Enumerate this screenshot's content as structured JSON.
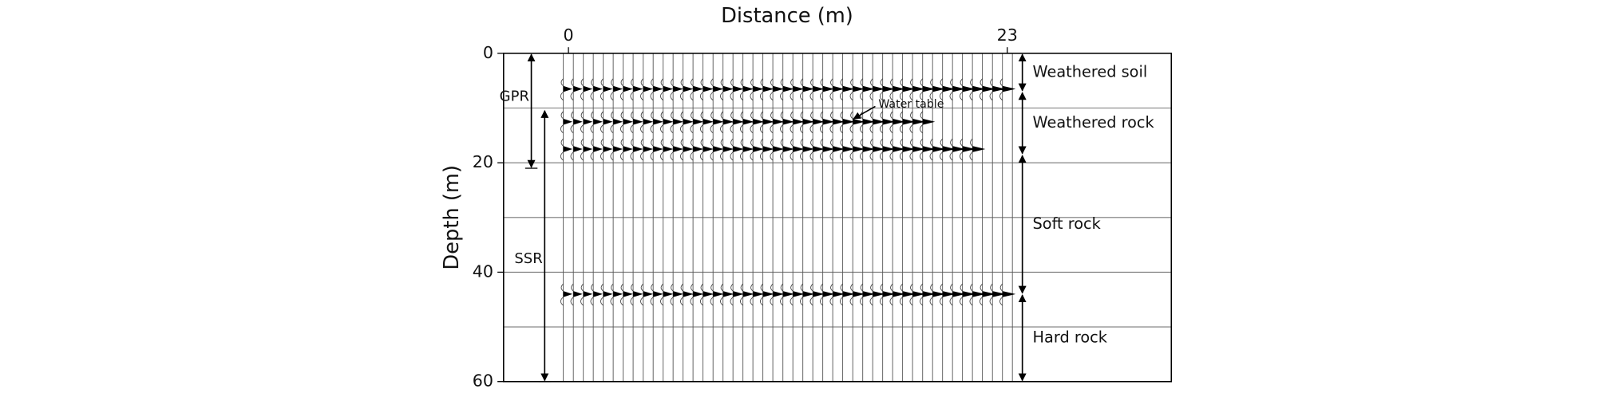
{
  "chart_data": {
    "type": "seismic-section",
    "x_label": "Distance (m)",
    "y_label": "Depth (m)",
    "xlim": [
      -3.4,
      31.6
    ],
    "ylim": [
      0,
      60
    ],
    "xticks": [
      0,
      23
    ],
    "yticks": [
      0,
      20,
      40,
      60
    ],
    "ygrid": [
      10,
      20,
      30,
      40,
      50
    ],
    "reflectors": [
      {
        "depth": 6.5,
        "end": 23
      },
      {
        "depth": 12.5,
        "end": 19
      },
      {
        "depth": 17.5,
        "end": 21.5
      },
      {
        "depth": 44,
        "end": 23
      }
    ],
    "layers": [
      {
        "name": "Weathered soil",
        "top": 0,
        "bottom": 7
      },
      {
        "name": "Weathered rock",
        "top": 7,
        "bottom": 18.5
      },
      {
        "name": "Soft rock",
        "top": 18.5,
        "bottom": 44
      },
      {
        "name": "Hard rock",
        "top": 44,
        "bottom": 60
      }
    ],
    "methods": [
      {
        "name": "GPR",
        "top": 0,
        "bottom": 21
      },
      {
        "name": "SSR",
        "top": 10.3,
        "bottom": 60
      }
    ],
    "annotation": {
      "text": "Water table",
      "depth": 12.5,
      "distance": 14.9
    }
  }
}
